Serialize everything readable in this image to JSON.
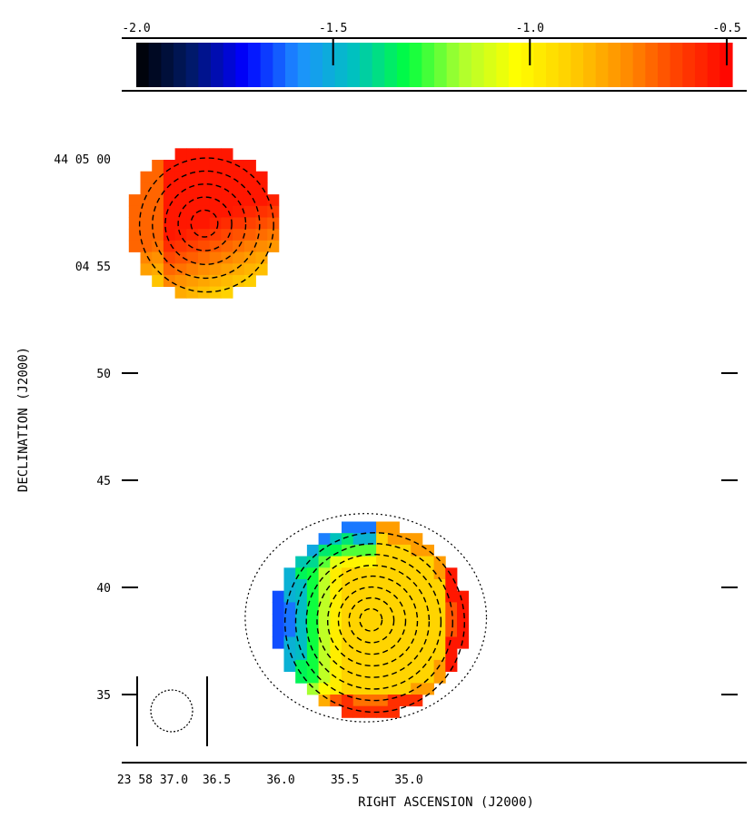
{
  "chart_data": {
    "type": "heatmap",
    "title": "",
    "colorbar": {
      "ticks": [
        -2.0,
        -1.5,
        -1.0,
        -0.5
      ],
      "tick_labels": [
        "-2.0",
        "-1.5",
        "-1.0",
        "-0.5"
      ],
      "range": [
        -2.0,
        -0.5
      ],
      "colormap": [
        "#000000",
        "#001a66",
        "#0000ff",
        "#1e90ff",
        "#00c0c0",
        "#00ff40",
        "#adff2f",
        "#ffff00",
        "#ffd000",
        "#ff9000",
        "#ff4000",
        "#ff0000"
      ]
    },
    "xlabel": "RIGHT ASCENSION (J2000)",
    "ylabel": "DECLINATION (J2000)",
    "x_ticks": [
      "23 58 37.0",
      "36.5",
      "36.0",
      "35.5",
      "35.0"
    ],
    "y_ticks": [
      "44 05 00",
      "04 55",
      "50",
      "45",
      "40",
      "35"
    ],
    "sources": [
      {
        "name": "north-west source",
        "ra_sec": 36.6,
        "dec_offset_arcsec": 57,
        "radius_arcsec": 3.5,
        "index_range": [
          -0.9,
          -0.5
        ],
        "dominant_value": -0.6
      },
      {
        "name": "south-east source",
        "ra_sec": 35.3,
        "dec_offset_arcsec": 38.5,
        "radius_arcsec": 4.5,
        "index_range": [
          -1.9,
          -0.5
        ],
        "dominant_value": -0.9
      }
    ],
    "beam": {
      "shape": "circle",
      "style": "dotted"
    },
    "grid": false,
    "contours": "dashed"
  }
}
